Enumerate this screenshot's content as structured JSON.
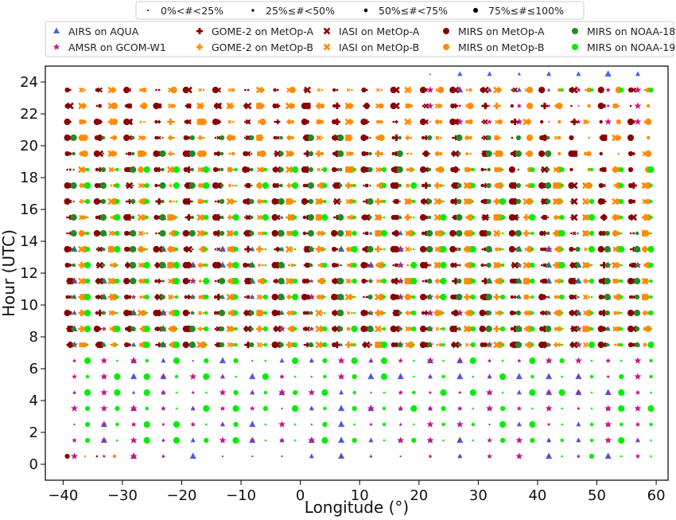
{
  "chart_data": {
    "type": "scatter",
    "title": "",
    "xlabel": "Longitude (°)",
    "ylabel": "Hour (UTC)",
    "xlim": [
      -43,
      62
    ],
    "ylim": [
      -1,
      25
    ],
    "xticks": [
      -40,
      -30,
      -20,
      -10,
      0,
      10,
      20,
      30,
      40,
      50,
      60
    ],
    "yticks": [
      0,
      2,
      4,
      6,
      8,
      10,
      12,
      14,
      16,
      18,
      20,
      22,
      24
    ],
    "grid": false,
    "size_legend": {
      "placement": "top-center",
      "entries": [
        {
          "label": "0%<#<25%",
          "level": 1
        },
        {
          "label": "25%≤#<50%",
          "level": 2
        },
        {
          "label": "50%≤#<75%",
          "level": 3
        },
        {
          "label": "75%≤#≤100%",
          "level": 4
        }
      ]
    },
    "legend_placement": "top-center",
    "series": [
      {
        "name": "AIRS on AQUA",
        "marker": "triangle",
        "color": "#4169e1",
        "hours": [
          0,
          1,
          2,
          3,
          4,
          5,
          6,
          7,
          8,
          9,
          10,
          11,
          12,
          13,
          14,
          15,
          23,
          24
        ]
      },
      {
        "name": "AMSR on GCOM-W1",
        "marker": "star",
        "color": "#c71585",
        "hours": [
          0,
          1,
          2,
          3,
          4,
          5,
          6,
          7,
          8,
          9,
          10,
          11,
          12,
          13,
          21,
          22,
          23
        ]
      },
      {
        "name": "GOME-2 on MetOp-A",
        "marker": "plus",
        "color": "#8b0000",
        "hours": [
          7,
          8,
          9,
          10,
          11,
          12,
          13,
          14,
          15,
          16,
          17,
          18,
          19,
          20,
          21,
          22
        ]
      },
      {
        "name": "GOME-2 on MetOp-B",
        "marker": "plus",
        "color": "#ff8c00",
        "hours": [
          7,
          8,
          9,
          10,
          11,
          12,
          13,
          14,
          15,
          16,
          17,
          18,
          19,
          20,
          21,
          22
        ]
      },
      {
        "name": "IASI on MetOp-A",
        "marker": "x",
        "color": "#8b0000",
        "hours": [
          7,
          8,
          9,
          10,
          11,
          12,
          13,
          14,
          15,
          16,
          17,
          18,
          19,
          20,
          21,
          22,
          23
        ]
      },
      {
        "name": "IASI on MetOp-B",
        "marker": "x",
        "color": "#ff8c00",
        "hours": [
          7,
          8,
          9,
          10,
          11,
          12,
          13,
          14,
          15,
          16,
          17,
          18,
          19,
          20,
          21,
          22,
          23
        ]
      },
      {
        "name": "MIRS on MetOp-A",
        "marker": "circle",
        "color": "#8b0000",
        "hours": [
          0,
          7,
          8,
          9,
          10,
          11,
          12,
          13,
          14,
          15,
          16,
          17,
          18,
          19,
          20,
          21,
          22,
          23
        ]
      },
      {
        "name": "MIRS on MetOp-B",
        "marker": "circle",
        "color": "#ff8c00",
        "hours": [
          0,
          7,
          8,
          9,
          10,
          11,
          12,
          13,
          14,
          15,
          16,
          17,
          18,
          19,
          20,
          21,
          22,
          23
        ]
      },
      {
        "name": "MIRS on NOAA-18",
        "marker": "circle",
        "color": "#228b22",
        "hours": [
          7,
          8,
          9,
          10,
          11,
          12,
          13,
          14,
          15,
          16,
          17,
          18,
          19,
          20
        ]
      },
      {
        "name": "MIRS on NOAA-19",
        "marker": "circle",
        "color": "#00ee00",
        "hours": [
          0,
          1,
          2,
          3,
          4,
          5,
          6,
          7,
          8,
          9,
          10,
          11,
          12,
          13,
          14,
          15,
          16,
          17,
          18,
          23
        ]
      }
    ],
    "longitude_bins": [
      -37.5,
      -32.5,
      -27.5,
      -22.5,
      -17.5,
      -12.5,
      -7.5,
      -2.5,
      2.5,
      7.5,
      12.5,
      17.5,
      22.5,
      27.5,
      32.5,
      37.5,
      42.5,
      47.5,
      52.5,
      57.5
    ]
  }
}
